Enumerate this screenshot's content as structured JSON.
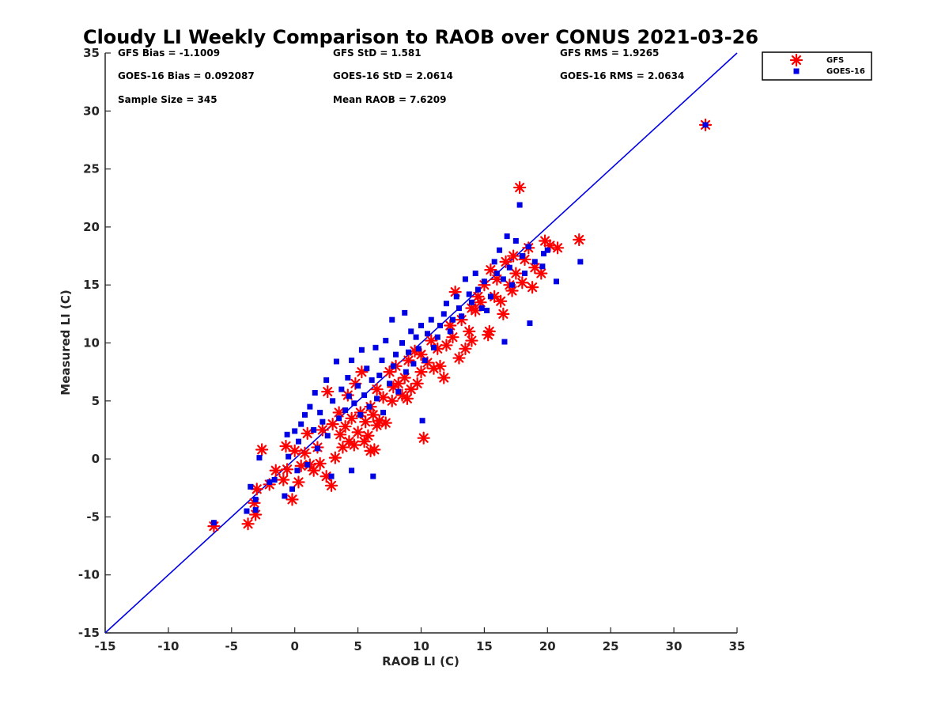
{
  "chart_data": {
    "type": "scatter",
    "title": "Cloudy LI Weekly Comparison to RAOB over CONUS 2021-03-26",
    "xlabel": "RAOB LI (C)",
    "ylabel": "Measured LI (C)",
    "xlim": [
      -15,
      35
    ],
    "ylim": [
      -15,
      35
    ],
    "x_ticks": [
      "-15",
      "-10",
      "-5",
      "0",
      "5",
      "10",
      "15",
      "20",
      "25",
      "30",
      "35"
    ],
    "y_ticks": [
      "35",
      "30",
      "25",
      "20",
      "15",
      "10",
      "5",
      "0",
      "-5",
      "-10",
      "-15"
    ],
    "grid": false,
    "legend_position": "outside top-right",
    "reference_line": {
      "x": [
        -15,
        35
      ],
      "y": [
        -15,
        35
      ],
      "color": "#0000e6"
    },
    "stats": {
      "gfs_bias": "GFS Bias = -1.1009",
      "goes_bias": "GOES-16 Bias = 0.092087",
      "sample_size": "Sample Size = 345",
      "gfs_std": "GFS StD = 1.581",
      "goes_std": "GOES-16 StD = 2.0614",
      "mean_raob": "Mean RAOB = 7.6209",
      "gfs_rms": "GFS RMS = 1.9265",
      "goes_rms": "GOES-16 RMS = 2.0634"
    },
    "series": [
      {
        "name": "GFS",
        "color": "#ff0000",
        "marker": "asterisk",
        "points": [
          [
            -6.4,
            -5.8
          ],
          [
            -3.7,
            -5.6
          ],
          [
            -3.1,
            -4.8
          ],
          [
            -3.2,
            -3.8
          ],
          [
            -3.0,
            -2.6
          ],
          [
            -2.6,
            0.8
          ],
          [
            -2.0,
            -2.2
          ],
          [
            -1.5,
            -1.0
          ],
          [
            -0.9,
            -1.8
          ],
          [
            -0.7,
            1.1
          ],
          [
            -0.6,
            -0.9
          ],
          [
            -0.2,
            -3.5
          ],
          [
            0.0,
            0.7
          ],
          [
            0.3,
            -2.0
          ],
          [
            0.5,
            -0.6
          ],
          [
            0.8,
            0.5
          ],
          [
            1.0,
            2.2
          ],
          [
            1.2,
            -0.5
          ],
          [
            1.5,
            -1.0
          ],
          [
            1.8,
            1.0
          ],
          [
            2.0,
            -0.4
          ],
          [
            2.2,
            2.5
          ],
          [
            2.5,
            -1.5
          ],
          [
            2.6,
            5.8
          ],
          [
            2.9,
            -2.3
          ],
          [
            3.0,
            3.0
          ],
          [
            3.2,
            0.1
          ],
          [
            3.5,
            4.0
          ],
          [
            3.6,
            2.1
          ],
          [
            3.8,
            1.0
          ],
          [
            4.0,
            2.8
          ],
          [
            4.2,
            5.5
          ],
          [
            4.3,
            1.5
          ],
          [
            4.5,
            3.5
          ],
          [
            4.7,
            1.2
          ],
          [
            4.8,
            6.5
          ],
          [
            5.0,
            2.3
          ],
          [
            5.2,
            4.0
          ],
          [
            5.3,
            7.5
          ],
          [
            5.5,
            1.5
          ],
          [
            5.6,
            3.2
          ],
          [
            5.8,
            2.0
          ],
          [
            6.0,
            4.5
          ],
          [
            6.0,
            0.7
          ],
          [
            6.2,
            3.8
          ],
          [
            6.3,
            0.8
          ],
          [
            6.5,
            6.0
          ],
          [
            6.5,
            2.9
          ],
          [
            6.7,
            3.3
          ],
          [
            7.0,
            5.3
          ],
          [
            7.2,
            3.1
          ],
          [
            7.5,
            7.5
          ],
          [
            7.7,
            5.0
          ],
          [
            7.8,
            6.2
          ],
          [
            8.0,
            8.0
          ],
          [
            8.2,
            6.5
          ],
          [
            8.5,
            5.5
          ],
          [
            8.7,
            7.0
          ],
          [
            8.9,
            5.2
          ],
          [
            9.0,
            8.5
          ],
          [
            9.2,
            6.0
          ],
          [
            9.5,
            9.3
          ],
          [
            9.7,
            6.5
          ],
          [
            10.0,
            7.5
          ],
          [
            10.0,
            9.0
          ],
          [
            10.2,
            1.8
          ],
          [
            10.5,
            8.3
          ],
          [
            10.8,
            10.2
          ],
          [
            11.0,
            7.8
          ],
          [
            11.3,
            9.5
          ],
          [
            11.5,
            8.0
          ],
          [
            11.8,
            7.0
          ],
          [
            12.0,
            9.8
          ],
          [
            12.3,
            11.5
          ],
          [
            12.5,
            10.5
          ],
          [
            12.7,
            14.4
          ],
          [
            13.0,
            8.7
          ],
          [
            13.2,
            12.0
          ],
          [
            13.5,
            9.5
          ],
          [
            13.8,
            11.0
          ],
          [
            14.0,
            13.0
          ],
          [
            14.0,
            10.2
          ],
          [
            14.3,
            12.8
          ],
          [
            14.5,
            14.0
          ],
          [
            14.7,
            13.5
          ],
          [
            15.0,
            15.0
          ],
          [
            15.3,
            10.7
          ],
          [
            15.4,
            11.0
          ],
          [
            15.5,
            16.3
          ],
          [
            15.8,
            14.0
          ],
          [
            16.0,
            15.5
          ],
          [
            16.3,
            13.6
          ],
          [
            16.5,
            12.5
          ],
          [
            16.7,
            17.0
          ],
          [
            17.0,
            15.0
          ],
          [
            17.2,
            14.5
          ],
          [
            17.3,
            17.5
          ],
          [
            17.5,
            16.0
          ],
          [
            17.8,
            23.4
          ],
          [
            18.0,
            15.2
          ],
          [
            18.2,
            17.2
          ],
          [
            18.5,
            18.2
          ],
          [
            18.8,
            14.8
          ],
          [
            19.0,
            16.5
          ],
          [
            19.5,
            16.0
          ],
          [
            19.8,
            18.8
          ],
          [
            20.2,
            18.4
          ],
          [
            20.8,
            18.2
          ],
          [
            22.5,
            18.9
          ],
          [
            32.5,
            28.8
          ]
        ]
      },
      {
        "name": "GOES-16",
        "color": "#0000e6",
        "marker": "square",
        "points": [
          [
            -6.4,
            -5.5
          ],
          [
            -3.8,
            -4.5
          ],
          [
            -3.5,
            -2.4
          ],
          [
            -3.1,
            -3.5
          ],
          [
            -3.1,
            -4.4
          ],
          [
            -2.8,
            0.1
          ],
          [
            -2.0,
            -2.0
          ],
          [
            -1.6,
            -1.8
          ],
          [
            -0.8,
            -3.2
          ],
          [
            -0.6,
            2.1
          ],
          [
            -0.5,
            0.2
          ],
          [
            -0.2,
            -2.6
          ],
          [
            0.0,
            2.4
          ],
          [
            0.2,
            -1.0
          ],
          [
            0.3,
            1.5
          ],
          [
            0.5,
            3.0
          ],
          [
            0.8,
            3.8
          ],
          [
            1.0,
            -0.5
          ],
          [
            1.2,
            4.5
          ],
          [
            1.5,
            2.5
          ],
          [
            1.6,
            5.7
          ],
          [
            1.8,
            0.9
          ],
          [
            2.0,
            4.0
          ],
          [
            2.2,
            3.2
          ],
          [
            2.5,
            6.8
          ],
          [
            2.6,
            2.0
          ],
          [
            2.9,
            -1.5
          ],
          [
            3.0,
            5.0
          ],
          [
            3.3,
            8.4
          ],
          [
            3.5,
            3.5
          ],
          [
            3.7,
            6.0
          ],
          [
            4.0,
            4.2
          ],
          [
            4.2,
            7.0
          ],
          [
            4.3,
            5.4
          ],
          [
            4.5,
            -1.0
          ],
          [
            4.5,
            8.5
          ],
          [
            4.7,
            4.8
          ],
          [
            5.0,
            6.3
          ],
          [
            5.2,
            3.8
          ],
          [
            5.3,
            9.4
          ],
          [
            5.5,
            5.5
          ],
          [
            5.7,
            7.8
          ],
          [
            5.9,
            4.5
          ],
          [
            6.1,
            6.8
          ],
          [
            6.2,
            -1.5
          ],
          [
            6.4,
            9.6
          ],
          [
            6.5,
            5.2
          ],
          [
            6.7,
            7.2
          ],
          [
            6.9,
            8.5
          ],
          [
            7.0,
            4.0
          ],
          [
            7.2,
            10.2
          ],
          [
            7.5,
            6.5
          ],
          [
            7.7,
            12.0
          ],
          [
            7.8,
            8.0
          ],
          [
            8.0,
            9.0
          ],
          [
            8.2,
            5.8
          ],
          [
            8.5,
            10.0
          ],
          [
            8.7,
            12.6
          ],
          [
            8.8,
            7.5
          ],
          [
            9.0,
            9.2
          ],
          [
            9.2,
            11.0
          ],
          [
            9.4,
            8.2
          ],
          [
            9.6,
            10.5
          ],
          [
            9.8,
            9.5
          ],
          [
            10.0,
            11.5
          ],
          [
            10.1,
            3.3
          ],
          [
            10.3,
            8.5
          ],
          [
            10.5,
            10.8
          ],
          [
            10.8,
            12.0
          ],
          [
            11.0,
            9.6
          ],
          [
            11.3,
            10.5
          ],
          [
            11.5,
            11.5
          ],
          [
            11.8,
            12.5
          ],
          [
            12.0,
            13.4
          ],
          [
            12.3,
            11.0
          ],
          [
            12.5,
            12.0
          ],
          [
            12.8,
            14.0
          ],
          [
            13.0,
            13.0
          ],
          [
            13.2,
            12.3
          ],
          [
            13.5,
            15.5
          ],
          [
            13.8,
            14.2
          ],
          [
            14.0,
            13.5
          ],
          [
            14.3,
            16.0
          ],
          [
            14.5,
            14.6
          ],
          [
            14.8,
            13.0
          ],
          [
            15.0,
            15.3
          ],
          [
            15.2,
            12.8
          ],
          [
            15.5,
            14.0
          ],
          [
            15.8,
            17.0
          ],
          [
            16.0,
            16.0
          ],
          [
            16.2,
            18.0
          ],
          [
            16.5,
            15.5
          ],
          [
            16.6,
            10.1
          ],
          [
            16.8,
            19.2
          ],
          [
            17.0,
            16.5
          ],
          [
            17.2,
            15.0
          ],
          [
            17.5,
            18.8
          ],
          [
            17.8,
            21.9
          ],
          [
            18.0,
            17.5
          ],
          [
            18.2,
            16.0
          ],
          [
            18.5,
            18.3
          ],
          [
            18.6,
            11.7
          ],
          [
            19.0,
            17.0
          ],
          [
            19.6,
            16.6
          ],
          [
            19.7,
            17.7
          ],
          [
            20.0,
            18.0
          ],
          [
            20.7,
            15.3
          ],
          [
            22.6,
            17.0
          ],
          [
            32.5,
            28.8
          ]
        ]
      }
    ]
  }
}
